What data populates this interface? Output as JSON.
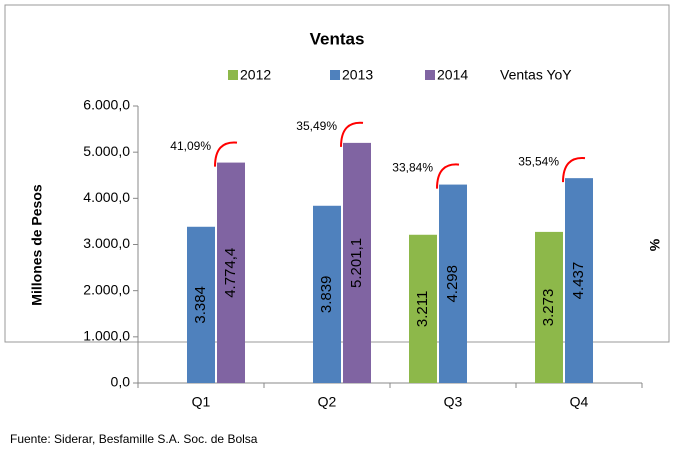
{
  "chart_data": {
    "type": "bar",
    "title": "Ventas",
    "y_label": "Millones de Pesos",
    "y2_label": "%",
    "categories": [
      "Q1",
      "Q2",
      "Q3",
      "Q4"
    ],
    "series": [
      {
        "name": "2012",
        "color": "#8db84a",
        "values": [
          null,
          null,
          3211,
          3273
        ],
        "value_labels": [
          null,
          null,
          "3.211",
          "3.273"
        ]
      },
      {
        "name": "2013",
        "color": "#4f81bd",
        "values": [
          3384,
          3839,
          4298,
          4437
        ],
        "value_labels": [
          "3.384",
          "3.839",
          "4.298",
          "4.437"
        ]
      },
      {
        "name": "2014",
        "color": "#8064a2",
        "values": [
          4774.4,
          5201.1,
          null,
          null
        ],
        "value_labels": [
          "4.774,4",
          "5.201,1",
          null,
          null
        ]
      },
      {
        "name": "Ventas YoY",
        "color": "#ff0000",
        "axis": "y2",
        "values": [
          41.09,
          35.49,
          33.84,
          35.54
        ],
        "value_labels": [
          "41,09%",
          "35,49%",
          "33,84%",
          "35,54%"
        ]
      }
    ],
    "ylim": [
      0,
      6000
    ],
    "yticks": [
      {
        "value": 0,
        "label": "0,0"
      },
      {
        "value": 1000,
        "label": "1.000,0"
      },
      {
        "value": 2000,
        "label": "2.000,0"
      },
      {
        "value": 3000,
        "label": "3.000,0"
      },
      {
        "value": 4000,
        "label": "4.000,0"
      },
      {
        "value": 5000,
        "label": "5.000,0"
      },
      {
        "value": 6000,
        "label": "6.000,0"
      }
    ],
    "source": "Fuente: Siderar, Besfamille S.A. Soc. de Bolsa"
  }
}
